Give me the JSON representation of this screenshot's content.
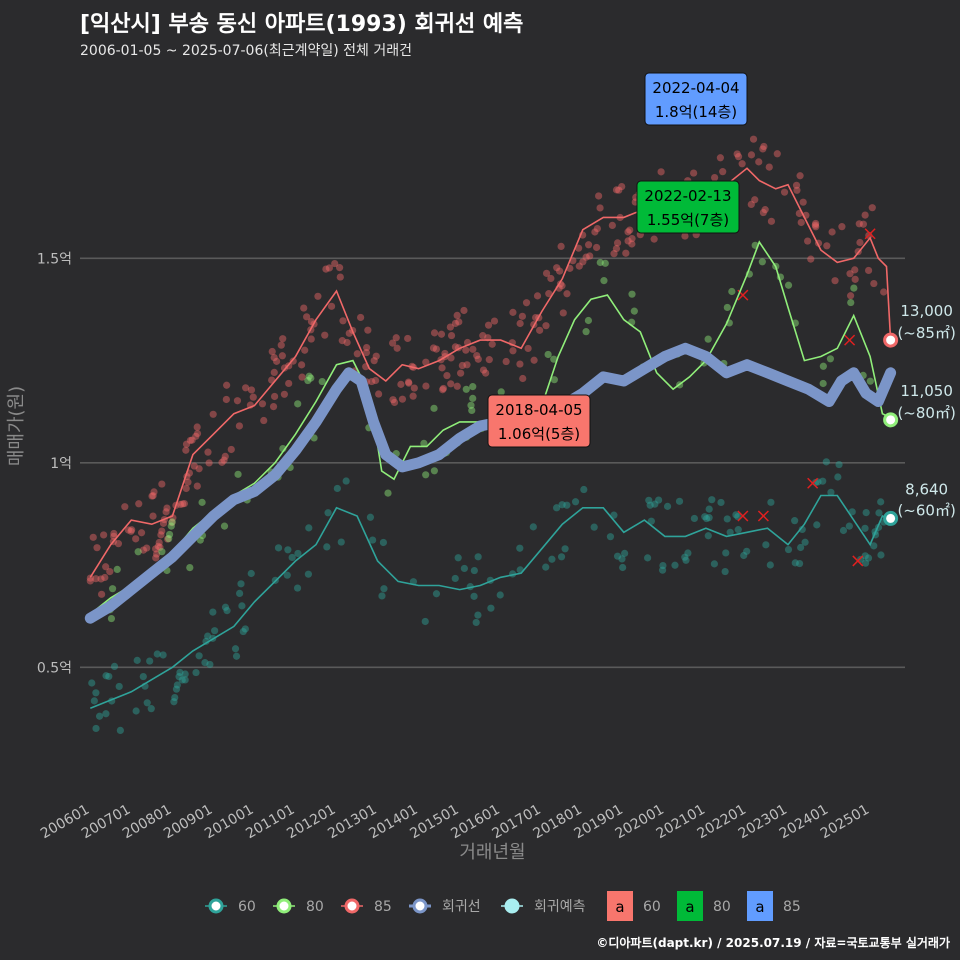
{
  "title": "[익산시] 부송 동신 아파트(1993) 회귀선 예측",
  "subtitle": "2006-01-05 ~ 2025-07-06(최근계약일) 전체 거래건",
  "credit": "©디아파트(dapt.kr) / 2025.07.19 / 자료=국토교통부 실거래가",
  "chart_data": {
    "type": "line",
    "xlabel": "거래년월",
    "ylabel": "매매가(원)",
    "xlim": [
      2005.75,
      2025.85
    ],
    "ylim": [
      0.2,
      1.98
    ],
    "x_ticks": [
      "200601",
      "200701",
      "200801",
      "200901",
      "201001",
      "201101",
      "201201",
      "201301",
      "201401",
      "201501",
      "201601",
      "201701",
      "201801",
      "201901",
      "202001",
      "202101",
      "202201",
      "202301",
      "202401",
      "202501"
    ],
    "y_ticks": [
      {
        "value": 0.5,
        "label": "0.5억"
      },
      {
        "value": 1.0,
        "label": "1억"
      },
      {
        "value": 1.5,
        "label": "1.5억"
      }
    ],
    "grid": true,
    "legend_position": "bottom",
    "colors": {
      "s60": "#2fa39a",
      "s80": "#90ee7a",
      "s85": "#f06868",
      "reg": "#7b95c8",
      "pred": "#a9eef0",
      "box60": "#f8766d",
      "box80": "#00ba38",
      "box85": "#619cff"
    },
    "series": [
      {
        "name": "85",
        "x": [
          2006.0,
          2006.5,
          2007.0,
          2007.5,
          2008.0,
          2008.5,
          2009.0,
          2009.5,
          2010.0,
          2010.5,
          2011.0,
          2011.5,
          2012.0,
          2012.4,
          2012.8,
          2013.2,
          2013.6,
          2014.0,
          2014.5,
          2015.0,
          2015.5,
          2016.0,
          2016.5,
          2017.0,
          2017.5,
          2018.0,
          2018.5,
          2019.0,
          2019.5,
          2020.0,
          2020.5,
          2021.0,
          2021.5,
          2022.0,
          2022.3,
          2022.7,
          2023.0,
          2023.4,
          2023.8,
          2024.2,
          2024.6,
          2025.0,
          2025.2,
          2025.4,
          2025.5
        ],
        "values": [
          0.72,
          0.8,
          0.86,
          0.85,
          0.87,
          1.02,
          1.07,
          1.12,
          1.14,
          1.2,
          1.26,
          1.35,
          1.42,
          1.32,
          1.23,
          1.2,
          1.24,
          1.23,
          1.25,
          1.28,
          1.3,
          1.3,
          1.28,
          1.37,
          1.45,
          1.57,
          1.6,
          1.6,
          1.62,
          1.65,
          1.62,
          1.65,
          1.68,
          1.72,
          1.69,
          1.67,
          1.68,
          1.6,
          1.52,
          1.49,
          1.5,
          1.55,
          1.5,
          1.48,
          1.3
        ]
      },
      {
        "name": "80",
        "x": [
          2006.0,
          2006.5,
          2007.0,
          2007.5,
          2008.0,
          2008.5,
          2009.0,
          2009.5,
          2010.0,
          2010.5,
          2011.0,
          2011.5,
          2012.0,
          2012.4,
          2012.8,
          2013.1,
          2013.4,
          2013.8,
          2014.2,
          2014.6,
          2015.0,
          2015.5,
          2016.0,
          2016.5,
          2017.0,
          2017.4,
          2017.8,
          2018.2,
          2018.6,
          2019.0,
          2019.4,
          2019.8,
          2020.2,
          2020.6,
          2021.0,
          2021.5,
          2022.0,
          2022.3,
          2022.7,
          2023.0,
          2023.4,
          2023.8,
          2024.2,
          2024.6,
          2025.0,
          2025.3,
          2025.5
        ],
        "values": [
          0.63,
          0.67,
          0.7,
          0.74,
          0.78,
          0.84,
          0.88,
          0.92,
          0.95,
          1.0,
          1.07,
          1.15,
          1.24,
          1.25,
          1.17,
          0.98,
          0.96,
          1.04,
          1.04,
          1.08,
          1.1,
          1.1,
          1.1,
          1.12,
          1.14,
          1.26,
          1.35,
          1.4,
          1.41,
          1.35,
          1.32,
          1.22,
          1.18,
          1.21,
          1.25,
          1.34,
          1.46,
          1.54,
          1.48,
          1.38,
          1.25,
          1.26,
          1.28,
          1.36,
          1.26,
          1.12,
          1.11
        ]
      },
      {
        "name": "60",
        "x": [
          2006.0,
          2006.5,
          2007.0,
          2007.5,
          2008.0,
          2008.5,
          2009.0,
          2009.5,
          2010.0,
          2010.5,
          2011.0,
          2011.5,
          2012.0,
          2012.5,
          2013.0,
          2013.5,
          2014.0,
          2014.5,
          2015.0,
          2015.5,
          2016.0,
          2016.5,
          2017.0,
          2017.5,
          2018.0,
          2018.5,
          2019.0,
          2019.5,
          2020.0,
          2020.5,
          2021.0,
          2021.5,
          2022.0,
          2022.5,
          2023.0,
          2023.4,
          2023.8,
          2024.2,
          2024.6,
          2025.0,
          2025.3,
          2025.5
        ],
        "values": [
          0.4,
          0.42,
          0.44,
          0.47,
          0.5,
          0.54,
          0.57,
          0.6,
          0.66,
          0.71,
          0.76,
          0.8,
          0.89,
          0.87,
          0.76,
          0.71,
          0.7,
          0.7,
          0.69,
          0.7,
          0.72,
          0.73,
          0.79,
          0.85,
          0.89,
          0.89,
          0.83,
          0.86,
          0.82,
          0.82,
          0.84,
          0.82,
          0.83,
          0.84,
          0.8,
          0.85,
          0.92,
          0.92,
          0.86,
          0.8,
          0.87,
          0.86
        ]
      },
      {
        "name": "회귀선",
        "x": [
          2006.0,
          2006.5,
          2007.0,
          2007.5,
          2008.0,
          2008.5,
          2009.0,
          2009.5,
          2010.0,
          2010.5,
          2011.0,
          2011.5,
          2012.0,
          2012.3,
          2012.6,
          2012.9,
          2013.2,
          2013.6,
          2014.0,
          2014.5,
          2015.0,
          2015.5,
          2016.0,
          2016.5,
          2017.0,
          2017.5,
          2018.0,
          2018.5,
          2019.0,
          2019.5,
          2020.0,
          2020.5,
          2021.0,
          2021.5,
          2022.0,
          2022.5,
          2023.0,
          2023.5,
          2024.0,
          2024.3,
          2024.6,
          2024.9,
          2025.2,
          2025.5
        ],
        "values": [
          0.62,
          0.65,
          0.69,
          0.73,
          0.77,
          0.82,
          0.87,
          0.91,
          0.93,
          0.97,
          1.03,
          1.1,
          1.18,
          1.22,
          1.2,
          1.1,
          1.02,
          0.99,
          1.0,
          1.02,
          1.06,
          1.09,
          1.1,
          1.11,
          1.12,
          1.14,
          1.17,
          1.21,
          1.2,
          1.23,
          1.26,
          1.28,
          1.26,
          1.22,
          1.24,
          1.22,
          1.2,
          1.18,
          1.15,
          1.2,
          1.22,
          1.17,
          1.15,
          1.22
        ]
      }
    ],
    "end_labels": [
      {
        "series": "85",
        "x": 2025.5,
        "value": 1.3,
        "price": "13,000",
        "area": "(~85㎡)"
      },
      {
        "series": "80",
        "x": 2025.5,
        "value": 1.105,
        "price": "11,050",
        "area": "(~80㎡)"
      },
      {
        "series": "60",
        "x": 2025.5,
        "value": 0.864,
        "price": "8,640",
        "area": "(~60㎡)"
      }
    ],
    "max_labels": [
      {
        "series": "85",
        "date": "2022-04-04",
        "text": "1.8억(14층)",
        "x": 2022.26,
        "value": 1.8
      },
      {
        "series": "80",
        "date": "2022-02-13",
        "text": "1.55억(7층)",
        "x": 2022.12,
        "value": 1.55
      },
      {
        "series": "60",
        "date": "2018-04-05",
        "text": "1.06억(5층)",
        "x": 2018.26,
        "value": 1.06
      }
    ],
    "legend": [
      {
        "key": "60",
        "color": "#2fa39a",
        "label": "60"
      },
      {
        "key": "80",
        "color": "#90ee7a",
        "label": "80"
      },
      {
        "key": "85",
        "color": "#f06868",
        "label": "85"
      },
      {
        "key": "reg",
        "color": "#7b95c8",
        "label": "회귀선"
      },
      {
        "key": "pred",
        "color": "#a9eef0",
        "label": "회귀예측"
      }
    ],
    "box_legend": [
      {
        "color": "#f8766d",
        "glyph": "a",
        "label": "60"
      },
      {
        "color": "#00ba38",
        "glyph": "a",
        "label": "80"
      },
      {
        "color": "#619cff",
        "glyph": "a",
        "label": "85"
      }
    ]
  }
}
